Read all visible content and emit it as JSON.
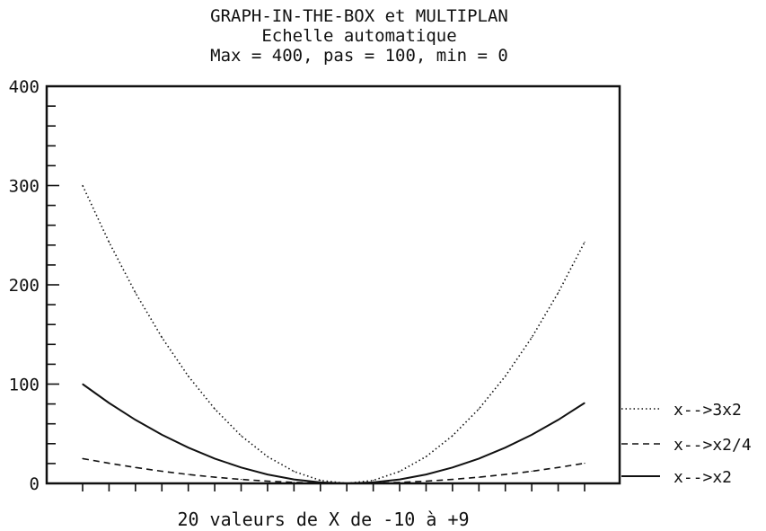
{
  "chart_data": {
    "type": "line",
    "title_lines": [
      "GRAPH-IN-THE-BOX et MULTIPLAN",
      "Echelle automatique",
      "Max = 400, pas = 100, min = 0"
    ],
    "xlabel": "20 valeurs de X de -10 à +9",
    "ylabel": "",
    "ylim": [
      0,
      400
    ],
    "yticks": [
      0,
      100,
      200,
      300,
      400
    ],
    "ytick_labels": [
      "0",
      "100",
      "200",
      "300",
      "400"
    ],
    "x": [
      -10,
      -9,
      -8,
      -7,
      -6,
      -5,
      -4,
      -3,
      -2,
      -1,
      0,
      1,
      2,
      3,
      4,
      5,
      6,
      7,
      8,
      9
    ],
    "series": [
      {
        "name": "x-->3x2",
        "style": "dotted",
        "values": [
          300,
          243,
          192,
          147,
          108,
          75,
          48,
          27,
          12,
          3,
          0,
          3,
          12,
          27,
          48,
          75,
          108,
          147,
          192,
          243
        ]
      },
      {
        "name": "x-->x2/4",
        "style": "dashed",
        "values": [
          25,
          20.25,
          16,
          12.25,
          9,
          6.25,
          4,
          2.25,
          1,
          0.25,
          0,
          0.25,
          1,
          2.25,
          4,
          6.25,
          9,
          12.25,
          16,
          20.25
        ]
      },
      {
        "name": "x-->x2",
        "style": "solid",
        "values": [
          100,
          81,
          64,
          49,
          36,
          25,
          16,
          9,
          4,
          1,
          0,
          1,
          4,
          9,
          16,
          25,
          36,
          49,
          64,
          81
        ]
      }
    ],
    "grid": false,
    "legend_position": "right-bottom",
    "line_color": "#111111"
  }
}
